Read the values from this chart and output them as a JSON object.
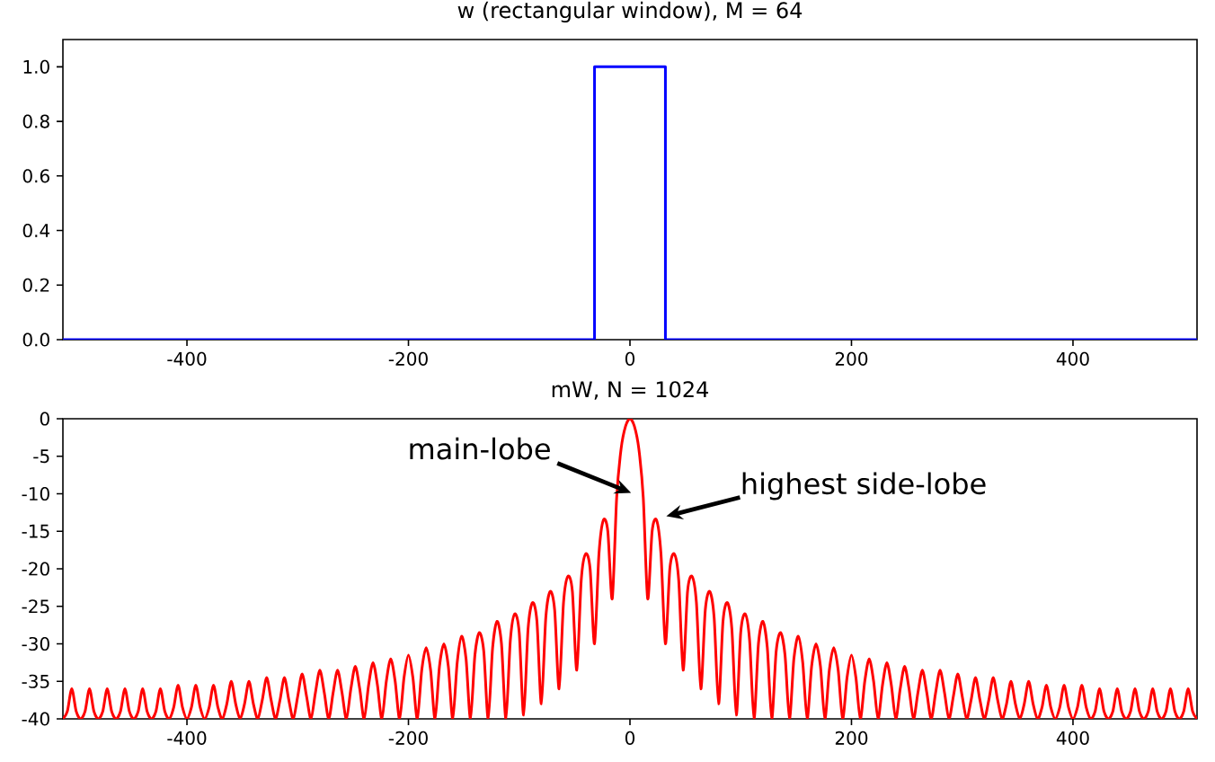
{
  "chart_data": [
    {
      "type": "step",
      "title": "w (rectangular window), M = 64",
      "x": [
        -512,
        -32,
        32,
        512
      ],
      "values": [
        0,
        1,
        0,
        0
      ],
      "color": "#0000ff",
      "xlim": [
        -512,
        512
      ],
      "xticks": [
        -400,
        -200,
        0,
        200,
        400
      ],
      "ylim": [
        0,
        1.1
      ],
      "yticks": [
        {
          "value": 0,
          "label": "0.0"
        },
        0.2,
        0.4,
        0.6,
        0.8,
        {
          "value": 1,
          "label": "1.0"
        }
      ]
    },
    {
      "type": "line",
      "title": "mW, N = 1024",
      "x": [
        -512,
        -508,
        -504,
        -500,
        -496,
        -492,
        -488,
        -484,
        -480,
        -476,
        -472,
        -468,
        -464,
        -460,
        -456,
        -452,
        -448,
        -444,
        -440,
        -436,
        -432,
        -428,
        -424,
        -420,
        -416,
        -412,
        -408,
        -404,
        -400,
        -396,
        -392,
        -388,
        -384,
        -380,
        -376,
        -372,
        -368,
        -364,
        -360,
        -356,
        -352,
        -348,
        -344,
        -340,
        -336,
        -332,
        -328,
        -324,
        -320,
        -316,
        -312,
        -308,
        -304,
        -300,
        -296,
        -292,
        -288,
        -284,
        -280,
        -276,
        -272,
        -268,
        -264,
        -260,
        -256,
        -252,
        -248,
        -244,
        -240,
        -236,
        -232,
        -228,
        -224,
        -220,
        -216,
        -212,
        -208,
        -204,
        -200,
        -196,
        -192,
        -188,
        -184,
        -180,
        -176,
        -172,
        -168,
        -164,
        -160,
        -156,
        -152,
        -148,
        -144,
        -140,
        -136,
        -132,
        -128,
        -124,
        -120,
        -116,
        -112,
        -108,
        -104,
        -100,
        -96,
        -92,
        -88,
        -84,
        -80,
        -76,
        -72,
        -68,
        -64,
        -60,
        -56,
        -52,
        -48,
        -44,
        -40,
        -36,
        -32,
        -28,
        -24,
        -20,
        -16,
        -12,
        -8,
        -4,
        0,
        4,
        8,
        12,
        16,
        20,
        24,
        28,
        32,
        36,
        40,
        44,
        48,
        52,
        56,
        60,
        64,
        68,
        72,
        76,
        80,
        84,
        88,
        92,
        96,
        100,
        104,
        108,
        112,
        116,
        120,
        124,
        128,
        132,
        136,
        140,
        144,
        148,
        152,
        156,
        160,
        164,
        168,
        172,
        176,
        180,
        184,
        188,
        192,
        196,
        200,
        204,
        208,
        212,
        216,
        220,
        224,
        228,
        232,
        236,
        240,
        244,
        248,
        252,
        256,
        260,
        264,
        268,
        272,
        276,
        280,
        284,
        288,
        292,
        296,
        300,
        304,
        308,
        312,
        316,
        320,
        324,
        328,
        332,
        336,
        340,
        344,
        348,
        352,
        356,
        360,
        364,
        368,
        372,
        376,
        380,
        384,
        388,
        392,
        396,
        400,
        404,
        408,
        412,
        416,
        420,
        424,
        428,
        432,
        436,
        440,
        444,
        448,
        452,
        456,
        460,
        464,
        468,
        472,
        476,
        480,
        484,
        488,
        492,
        496,
        500,
        504,
        508,
        512
      ],
      "values": [
        -40,
        -39,
        -36,
        -39,
        -40,
        -39,
        -36,
        -39,
        -40,
        -39,
        -36,
        -39,
        -40,
        -39,
        -36,
        -39,
        -40,
        -39,
        -36,
        -39,
        -40,
        -39,
        -36,
        -39,
        -40,
        -38.5,
        -35.5,
        -38.5,
        -40,
        -38.5,
        -35.5,
        -38.5,
        -40,
        -38.5,
        -35.5,
        -38.5,
        -40,
        -38,
        -35,
        -38,
        -40,
        -38,
        -35,
        -38,
        -40,
        -37.5,
        -34.5,
        -37.5,
        -40,
        -37.5,
        -34.5,
        -37.5,
        -40,
        -37,
        -34,
        -37,
        -40,
        -36.5,
        -33.5,
        -36.5,
        -40,
        -36.5,
        -33.5,
        -36.5,
        -40,
        -36,
        -33,
        -36,
        -40,
        -35.5,
        -32.5,
        -35.5,
        -40,
        -35,
        -32,
        -35,
        -40,
        -34.5,
        -31.5,
        -34.5,
        -40,
        -33.5,
        -30.5,
        -33.5,
        -40,
        -33,
        -30,
        -33,
        -40,
        -32.5,
        -29,
        -32,
        -40,
        -31.5,
        -28.5,
        -31,
        -40,
        -30.5,
        -27,
        -30,
        -40,
        -29.5,
        -26,
        -28.5,
        -39.5,
        -28,
        -24.5,
        -27,
        -38,
        -26.5,
        -23,
        -25.5,
        -36,
        -24.5,
        -21,
        -23,
        -33.5,
        -21.5,
        -18,
        -20,
        -30,
        -18,
        -13.5,
        -15,
        -24,
        -10.5,
        -4,
        -1,
        0,
        -1,
        -4,
        -10.5,
        -24,
        -15,
        -13.5,
        -18,
        -30,
        -20,
        -18,
        -21.5,
        -33.5,
        -23,
        -21,
        -24.5,
        -36,
        -25.5,
        -23,
        -26.5,
        -38,
        -27,
        -24.5,
        -28,
        -39.5,
        -28.5,
        -26,
        -29.5,
        -40,
        -30,
        -27,
        -30.5,
        -40,
        -31,
        -28.5,
        -31.5,
        -40,
        -32,
        -29,
        -32.5,
        -40,
        -33,
        -30,
        -33,
        -40,
        -33.5,
        -30.5,
        -33.5,
        -40,
        -34.5,
        -31.5,
        -34.5,
        -40,
        -35,
        -32,
        -35,
        -40,
        -35.5,
        -32.5,
        -35.5,
        -40,
        -36,
        -33,
        -36,
        -40,
        -36.5,
        -33.5,
        -36.5,
        -40,
        -36.5,
        -33.5,
        -36.5,
        -40,
        -37,
        -34,
        -37,
        -40,
        -37.5,
        -34.5,
        -37.5,
        -40,
        -37.5,
        -34.5,
        -37.5,
        -40,
        -38,
        -35,
        -38,
        -40,
        -38,
        -35,
        -38,
        -40,
        -38.5,
        -35.5,
        -38.5,
        -40,
        -38.5,
        -35.5,
        -38.5,
        -40,
        -38.5,
        -35.5,
        -38.5,
        -40,
        -39,
        -36,
        -39,
        -40,
        -39,
        -36,
        -39,
        -40,
        -39,
        -36,
        -39,
        -40,
        -39,
        -36,
        -39,
        -40,
        -39,
        -36,
        -39,
        -40,
        -39,
        -36,
        -39,
        -40
      ],
      "color": "#ff0000",
      "xlim": [
        -512,
        512
      ],
      "xticks": [
        -400,
        -200,
        0,
        200,
        400
      ],
      "ylim": [
        -40,
        0
      ],
      "yticks": [
        -40,
        -35,
        -30,
        -25,
        -20,
        -15,
        -10,
        -5,
        0
      ],
      "annotations": [
        "main-lobe",
        "highest side-lobe"
      ]
    }
  ]
}
